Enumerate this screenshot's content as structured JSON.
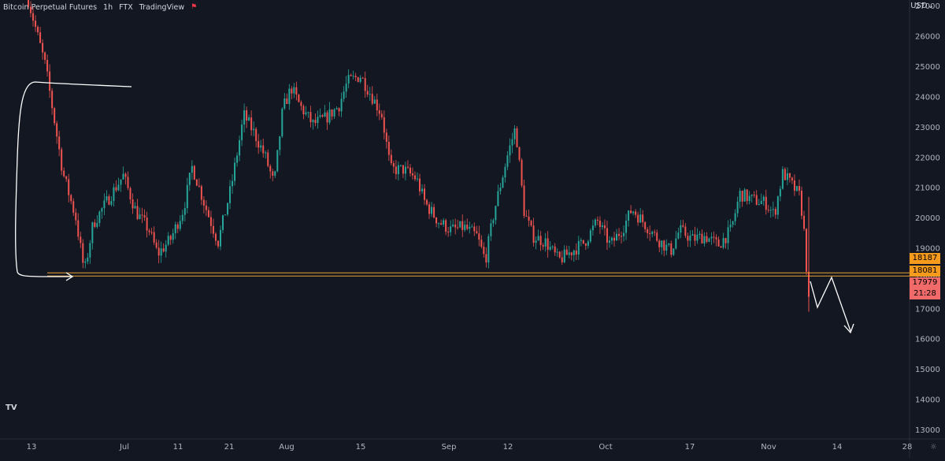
{
  "header": {
    "symbol": "Bitcoin Perpetual Futures",
    "interval": "1h",
    "exchange": "FTX",
    "source": "TradingView"
  },
  "currency_label": "USD",
  "icons": {
    "logo": "tradingview-logo-icon",
    "flag": "flag-icon",
    "settings": "gear-icon"
  },
  "logo_text": "TV",
  "colors": {
    "background": "#131722",
    "up": "#26a69a",
    "down": "#ef5350",
    "level": "#f0a030",
    "drawing": "#ffffff",
    "axis_text": "#b2b5be"
  },
  "price_badges": [
    {
      "label": "18187",
      "color": "#f89a1c"
    },
    {
      "label": "18081",
      "color": "#f89a1c"
    },
    {
      "label": "17979",
      "color": "#f06a6a"
    },
    {
      "label": "21:28",
      "color": "#f06a6a"
    }
  ],
  "chart_data": {
    "type": "candlestick",
    "title": "Bitcoin Perpetual Futures · 1h · FTX",
    "y_axis": {
      "side": "right",
      "ylim": [
        12700,
        27200
      ],
      "ticks": [
        "13000",
        "14000",
        "15000",
        "16000",
        "17000",
        "18000",
        "19000",
        "20000",
        "21000",
        "22000",
        "23000",
        "24000",
        "25000",
        "26000",
        "27000"
      ]
    },
    "x_axis": {
      "ticks": [
        "13",
        "Jul",
        "11",
        "21",
        "Aug",
        "15",
        "Sep",
        "12",
        "Oct",
        "17",
        "Nov",
        "14",
        "28"
      ]
    },
    "price_path": [
      [
        0.0,
        27200
      ],
      [
        0.02,
        25000
      ],
      [
        0.04,
        21500
      ],
      [
        0.055,
        20000
      ],
      [
        0.065,
        18200
      ],
      [
        0.075,
        19800
      ],
      [
        0.09,
        20500
      ],
      [
        0.11,
        21400
      ],
      [
        0.125,
        20200
      ],
      [
        0.14,
        19600
      ],
      [
        0.15,
        18800
      ],
      [
        0.165,
        19300
      ],
      [
        0.18,
        20300
      ],
      [
        0.19,
        21700
      ],
      [
        0.205,
        20400
      ],
      [
        0.22,
        19200
      ],
      [
        0.235,
        21000
      ],
      [
        0.25,
        23400
      ],
      [
        0.262,
        22800
      ],
      [
        0.275,
        22000
      ],
      [
        0.285,
        21100
      ],
      [
        0.295,
        23600
      ],
      [
        0.305,
        24300
      ],
      [
        0.315,
        23700
      ],
      [
        0.33,
        23100
      ],
      [
        0.345,
        23300
      ],
      [
        0.36,
        23700
      ],
      [
        0.37,
        24500
      ],
      [
        0.385,
        24700
      ],
      [
        0.395,
        24200
      ],
      [
        0.41,
        23400
      ],
      [
        0.42,
        21600
      ],
      [
        0.435,
        21600
      ],
      [
        0.45,
        21300
      ],
      [
        0.46,
        20500
      ],
      [
        0.475,
        19900
      ],
      [
        0.49,
        19600
      ],
      [
        0.505,
        19700
      ],
      [
        0.52,
        19400
      ],
      [
        0.53,
        18600
      ],
      [
        0.54,
        20200
      ],
      [
        0.555,
        22000
      ],
      [
        0.565,
        23000
      ],
      [
        0.575,
        20200
      ],
      [
        0.585,
        19400
      ],
      [
        0.6,
        19200
      ],
      [
        0.615,
        18600
      ],
      [
        0.63,
        18900
      ],
      [
        0.645,
        19200
      ],
      [
        0.66,
        19900
      ],
      [
        0.675,
        19100
      ],
      [
        0.69,
        19700
      ],
      [
        0.7,
        20300
      ],
      [
        0.715,
        19800
      ],
      [
        0.73,
        19300
      ],
      [
        0.745,
        18900
      ],
      [
        0.755,
        19600
      ],
      [
        0.77,
        19300
      ],
      [
        0.785,
        19400
      ],
      [
        0.8,
        19100
      ],
      [
        0.815,
        19600
      ],
      [
        0.825,
        20800
      ],
      [
        0.84,
        20600
      ],
      [
        0.855,
        20500
      ],
      [
        0.865,
        20100
      ],
      [
        0.875,
        21500
      ],
      [
        0.885,
        21100
      ],
      [
        0.895,
        20700
      ],
      [
        0.9,
        19400
      ],
      [
        0.905,
        17200
      ]
    ],
    "key_levels": [
      18187,
      18081
    ],
    "last_price": 17979,
    "annotations": [
      "white bracket drawing at June low",
      "white arrow projecting a drop toward 15500"
    ]
  }
}
